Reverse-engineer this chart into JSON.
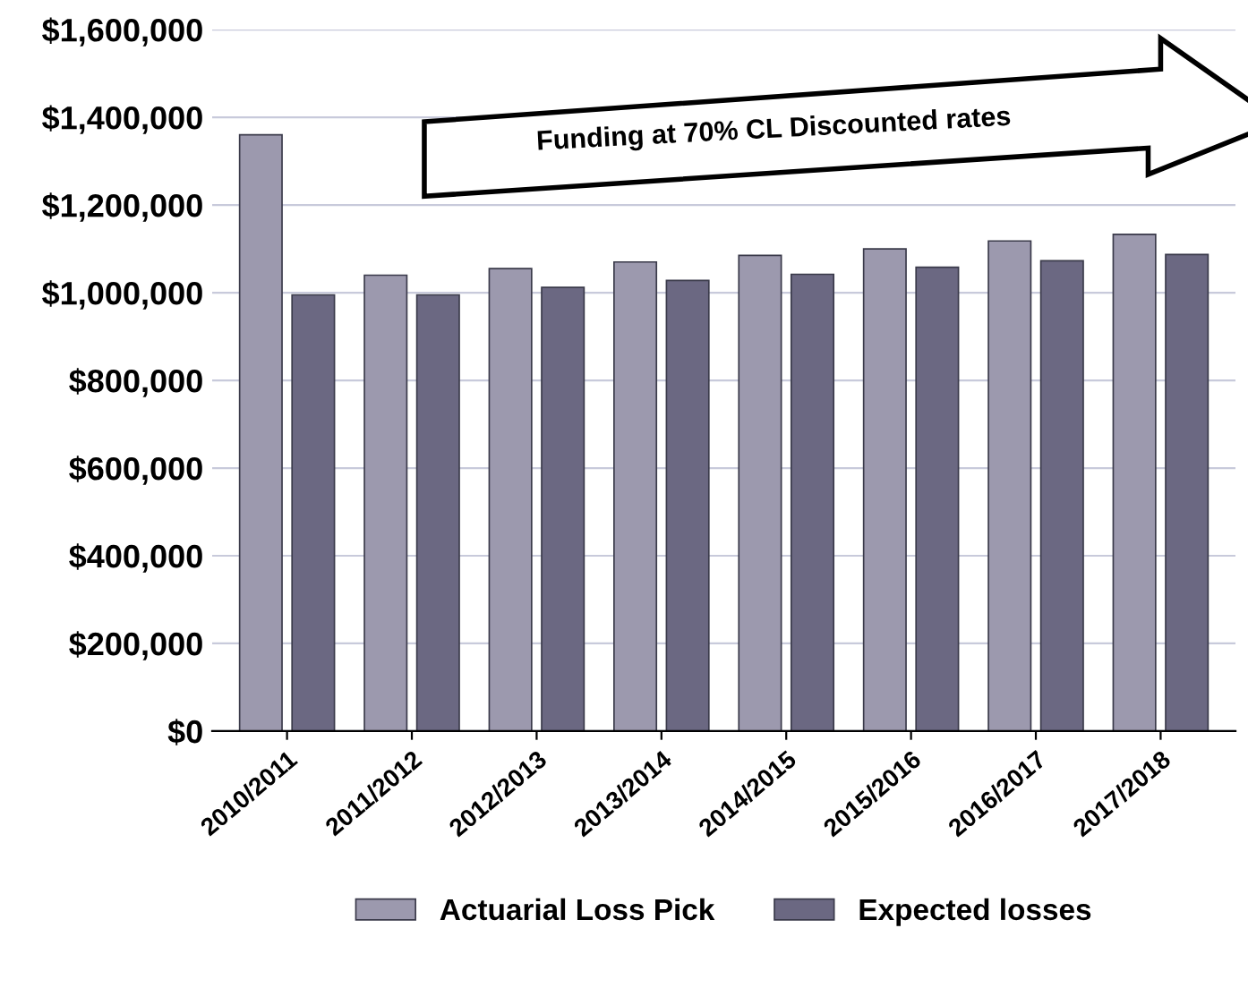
{
  "chart_data": {
    "type": "bar",
    "categories": [
      "2010/2011",
      "2011/2012",
      "2012/2013",
      "2013/2014",
      "2014/2015",
      "2015/2016",
      "2016/2017",
      "2017/2018"
    ],
    "series": [
      {
        "name": "Actuarial Loss Pick",
        "color": "#9c99ae",
        "values": [
          1360000,
          1040000,
          1055000,
          1070000,
          1085000,
          1100000,
          1118000,
          1133000
        ]
      },
      {
        "name": "Expected losses",
        "color": "#6b6882",
        "values": [
          995000,
          995000,
          1012000,
          1028000,
          1042000,
          1058000,
          1073000,
          1087000
        ]
      }
    ],
    "ylim": [
      0,
      1600000
    ],
    "yticks": [
      {
        "value": 0,
        "label": "$0"
      },
      {
        "value": 200000,
        "label": "$200,000"
      },
      {
        "value": 400000,
        "label": "$400,000"
      },
      {
        "value": 600000,
        "label": "$600,000"
      },
      {
        "value": 800000,
        "label": "$800,000"
      },
      {
        "value": 1000000,
        "label": "$1,000,000"
      },
      {
        "value": 1200000,
        "label": "$1,200,000"
      },
      {
        "value": 1400000,
        "label": "$1,400,000"
      },
      {
        "value": 1600000,
        "label": "$1,600,000"
      }
    ],
    "grid": "y",
    "legend": "bottom",
    "annotations": [
      "Funding at 70% CL Discounted rates"
    ]
  }
}
